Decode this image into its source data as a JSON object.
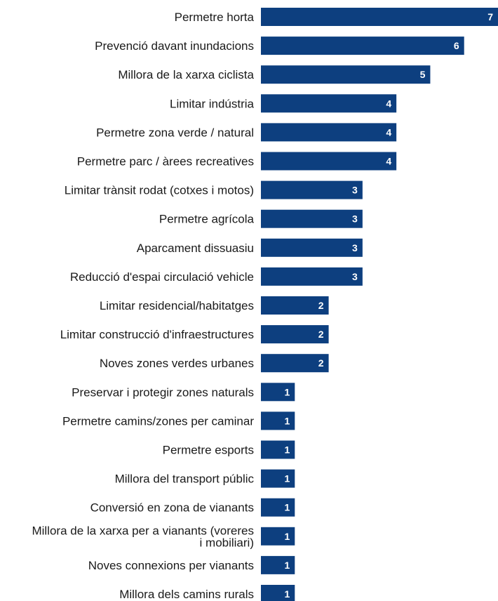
{
  "chart_data": {
    "type": "bar",
    "orientation": "horizontal",
    "categories": [
      "Permetre horta",
      "Prevenció davant inundacions",
      "Millora de la xarxa ciclista",
      "Limitar indústria",
      "Permetre zona verde / natural",
      "Permetre parc / àrees recreatives",
      "Limitar trànsit rodat (cotxes i motos)",
      "Permetre agrícola",
      "Aparcament dissuasiu",
      "Reducció d'espai circulació vehicle",
      "Limitar residencial/habitatges",
      "Limitar construcció d'infraestructures",
      "Noves zones verdes urbanes",
      "Preservar i protegir zones naturals",
      "Permetre camins/zones per caminar",
      "Permetre esports",
      "Millora del transport públic",
      "Conversió en zona de vianants",
      "Millora de la xarxa per a vianants (voreres i mobiliari)",
      "Noves connexions per vianants",
      "Millora dels camins rurals"
    ],
    "label_lines": [
      [
        "Permetre horta"
      ],
      [
        "Prevenció davant inundacions"
      ],
      [
        "Millora de la xarxa ciclista"
      ],
      [
        "Limitar indústria"
      ],
      [
        "Permetre zona verde / natural"
      ],
      [
        "Permetre parc / àrees recreatives"
      ],
      [
        "Limitar trànsit rodat (cotxes i motos)"
      ],
      [
        "Permetre agrícola"
      ],
      [
        "Aparcament dissuasiu"
      ],
      [
        "Reducció d'espai circulació vehicle"
      ],
      [
        "Limitar residencial/habitatges"
      ],
      [
        "Limitar construcció d'infraestructures"
      ],
      [
        "Noves zones verdes urbanes"
      ],
      [
        "Preservar i protegir zones naturals"
      ],
      [
        "Permetre camins/zones per caminar"
      ],
      [
        "Permetre esports"
      ],
      [
        "Millora del transport públic"
      ],
      [
        "Conversió en zona de vianants"
      ],
      [
        "Millora de la xarxa per a vianants (voreres",
        "i mobiliari)"
      ],
      [
        "Noves connexions per vianants"
      ],
      [
        "Millora dels camins rurals"
      ]
    ],
    "values": [
      7,
      6,
      5,
      4,
      4,
      4,
      3,
      3,
      3,
      3,
      2,
      2,
      2,
      1,
      1,
      1,
      1,
      1,
      1,
      1,
      1
    ],
    "bar_color": "#0d3f7f",
    "value_label_color": "#ffffff",
    "title": "",
    "xlabel": "",
    "ylabel": "",
    "xlim": [
      0,
      7
    ],
    "grid": false,
    "legend": "none"
  }
}
